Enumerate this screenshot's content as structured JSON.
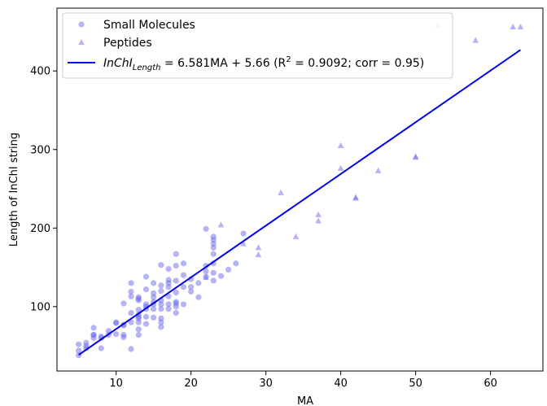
{
  "chart_data": {
    "type": "scatter",
    "xlabel": "MA",
    "ylabel": "Length of InChI string",
    "xlim": [
      2.1,
      67.0
    ],
    "ylim": [
      18.0,
      480.0
    ],
    "xticks": [
      10,
      20,
      30,
      40,
      50,
      60
    ],
    "yticks": [
      100,
      200,
      300,
      400
    ],
    "grid": false,
    "legend_position": "top-left",
    "colors": {
      "points": "#6a6af0",
      "fit_line": "#0000ee",
      "frame": "#000000"
    },
    "series": [
      {
        "name": "Small Molecules",
        "marker": "circle",
        "points": [
          [
            5,
            38
          ],
          [
            5,
            44
          ],
          [
            5,
            52
          ],
          [
            6,
            47
          ],
          [
            6,
            50
          ],
          [
            6,
            54
          ],
          [
            7,
            60
          ],
          [
            7,
            64
          ],
          [
            7,
            64
          ],
          [
            7,
            73
          ],
          [
            8,
            47
          ],
          [
            8,
            60
          ],
          [
            8,
            62
          ],
          [
            9,
            64
          ],
          [
            9,
            69
          ],
          [
            10,
            65
          ],
          [
            10,
            79
          ],
          [
            10,
            80
          ],
          [
            11,
            61
          ],
          [
            11,
            64
          ],
          [
            11,
            76
          ],
          [
            11,
            77
          ],
          [
            11,
            104
          ],
          [
            12,
            46
          ],
          [
            12,
            80
          ],
          [
            12,
            92
          ],
          [
            12,
            113
          ],
          [
            12,
            119
          ],
          [
            12,
            130
          ],
          [
            13,
            64
          ],
          [
            13,
            71
          ],
          [
            13,
            80
          ],
          [
            13,
            85
          ],
          [
            13,
            87
          ],
          [
            13,
            90
          ],
          [
            13,
            96
          ],
          [
            13,
            108
          ],
          [
            13,
            110
          ],
          [
            13,
            112
          ],
          [
            14,
            78
          ],
          [
            14,
            87
          ],
          [
            14,
            97
          ],
          [
            14,
            100
          ],
          [
            14,
            103
          ],
          [
            14,
            122
          ],
          [
            14,
            138
          ],
          [
            15,
            86
          ],
          [
            15,
            97
          ],
          [
            15,
            103
          ],
          [
            15,
            106
          ],
          [
            15,
            112
          ],
          [
            15,
            117
          ],
          [
            15,
            130
          ],
          [
            16,
            74
          ],
          [
            16,
            80
          ],
          [
            16,
            85
          ],
          [
            16,
            97
          ],
          [
            16,
            103
          ],
          [
            16,
            108
          ],
          [
            16,
            120
          ],
          [
            16,
            127
          ],
          [
            16,
            153
          ],
          [
            17,
            97
          ],
          [
            17,
            103
          ],
          [
            17,
            113
          ],
          [
            17,
            125
          ],
          [
            17,
            130
          ],
          [
            17,
            134
          ],
          [
            17,
            148
          ],
          [
            18,
            92
          ],
          [
            18,
            100
          ],
          [
            18,
            104
          ],
          [
            18,
            106
          ],
          [
            18,
            118
          ],
          [
            18,
            133
          ],
          [
            18,
            152
          ],
          [
            18,
            167
          ],
          [
            19,
            103
          ],
          [
            19,
            125
          ],
          [
            19,
            140
          ],
          [
            19,
            155
          ],
          [
            20,
            119
          ],
          [
            20,
            125
          ],
          [
            20,
            135
          ],
          [
            21,
            112
          ],
          [
            21,
            130
          ],
          [
            22,
            138
          ],
          [
            22,
            145
          ],
          [
            22,
            152
          ],
          [
            22,
            199
          ],
          [
            23,
            133
          ],
          [
            23,
            143
          ],
          [
            23,
            155
          ],
          [
            23,
            167
          ],
          [
            23,
            175
          ],
          [
            23,
            180
          ],
          [
            23,
            185
          ],
          [
            23,
            189
          ],
          [
            24,
            139
          ],
          [
            25,
            147
          ],
          [
            26,
            155
          ],
          [
            27,
            193
          ]
        ]
      },
      {
        "name": "Peptides",
        "marker": "triangle",
        "points": [
          [
            22,
            137
          ],
          [
            24,
            204
          ],
          [
            27,
            180
          ],
          [
            29,
            166
          ],
          [
            29,
            175
          ],
          [
            32,
            245
          ],
          [
            34,
            189
          ],
          [
            37,
            209
          ],
          [
            37,
            217
          ],
          [
            40,
            276
          ],
          [
            40,
            305
          ],
          [
            42,
            239
          ],
          [
            42,
            238
          ],
          [
            45,
            273
          ],
          [
            50,
            290
          ],
          [
            50,
            291
          ],
          [
            53,
            458
          ],
          [
            58,
            439
          ],
          [
            63,
            456
          ],
          [
            64,
            456
          ]
        ]
      }
    ],
    "fit": {
      "slope": 6.581,
      "intercept": 5.66,
      "x_range": [
        5,
        64
      ],
      "label_main": "InChI",
      "label_sub": "Length",
      "label_rest": " = 6.581MA + 5.66 (R",
      "label_sup": "2",
      "label_end": " = 0.9092; corr = 0.95)"
    }
  }
}
